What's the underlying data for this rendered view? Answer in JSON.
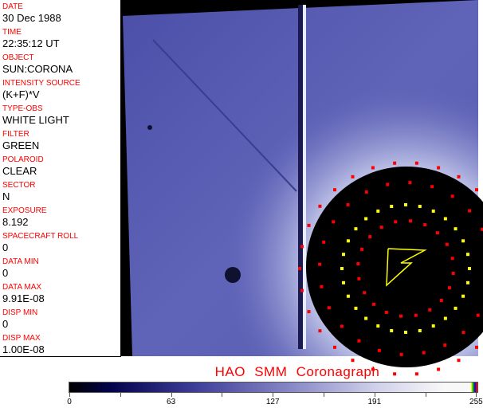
{
  "header_fields": [
    {
      "label": "DATE",
      "value": "30 Dec 1988"
    },
    {
      "label": "TIME",
      "value": "22:35:12 UT"
    },
    {
      "label": "OBJECT",
      "value": "SUN:CORONA"
    },
    {
      "label": "INTENSITY SOURCE",
      "value": "(K+F)*V"
    },
    {
      "label": "TYPE-OBS",
      "value": "WHITE LIGHT"
    },
    {
      "label": "FILTER",
      "value": "GREEN"
    },
    {
      "label": "POLAROID",
      "value": "CLEAR"
    },
    {
      "label": "SECTOR",
      "value": "N"
    },
    {
      "label": "EXPOSURE",
      "value": "8.192"
    },
    {
      "label": "SPACECRAFT ROLL",
      "value": "0"
    },
    {
      "label": "DATA MIN",
      "value": "0"
    },
    {
      "label": "DATA MAX",
      "value": "9.91E-08"
    },
    {
      "label": "DISP MIN",
      "value": "0"
    },
    {
      "label": "DISP MAX",
      "value": "1.00E-08"
    }
  ],
  "title": "HAO  SMM Coronagraph",
  "colorbar": {
    "ticks": [
      "0",
      "63",
      "127",
      "191",
      "255"
    ],
    "colors": {
      "low": "#000000",
      "mid": "#3b3b96",
      "high": "#f8f8f8"
    }
  },
  "colors": {
    "label": "#ff0000",
    "marker_red": "#ff0000",
    "marker_yellow": "#ffff00"
  }
}
